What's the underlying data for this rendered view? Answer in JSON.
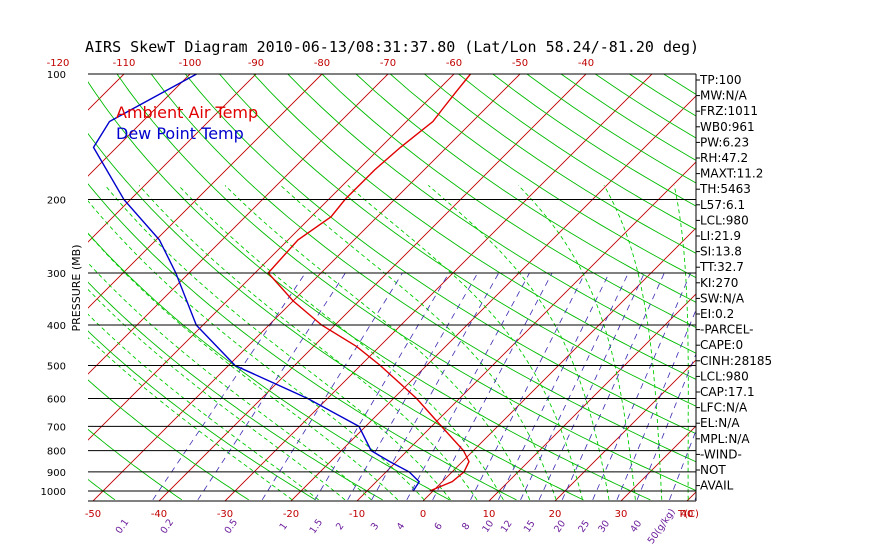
{
  "title": "AIRS SkewT Diagram 2010-06-13/08:31:37.80 (Lat/Lon 58.24/-81.20 deg)",
  "colors": {
    "temp": "#e00000",
    "dew": "#0000cc",
    "isotherm": "#c00000",
    "dry_adiabat": "#00bb00",
    "moist_adiabat": "#00cc00",
    "mixing": "#3a2ab0",
    "isobar": "#000000"
  },
  "chart_data": {
    "type": "line",
    "title": "AIRS SkewT Diagram 2010-06-13/08:31:37.80 (Lat/Lon 58.24/-81.20 deg)",
    "ylabel": "PRESSURE (MB)",
    "xlabel_right": "T(C)",
    "y_scale": "log-pressure",
    "ylim": [
      1050,
      100
    ],
    "pressure_levels": [
      100,
      200,
      300,
      400,
      500,
      600,
      700,
      800,
      900,
      1000
    ],
    "temp_ticks_top": [
      -120,
      -110,
      -100,
      -90,
      -80,
      -70,
      -60,
      -50,
      -40
    ],
    "temp_ticks_bottom": [
      -50,
      -40,
      -30,
      -20,
      -10,
      0,
      10,
      20,
      30,
      40
    ],
    "mixing_ratio_labels": [
      "0.1",
      "0.2",
      "0.5",
      "1",
      "1.5",
      "2",
      "3",
      "4",
      "6",
      "8",
      "10",
      "12",
      "15",
      "20",
      "25",
      "30",
      "40",
      "50(g/kg)"
    ],
    "legend": [
      "Ambient Air Temp",
      "Dew Point Temp"
    ],
    "series": [
      {
        "name": "Ambient Air Temp",
        "color": "#e00000",
        "p": [
          1000,
          950,
          900,
          850,
          800,
          700,
          600,
          500,
          450,
          400,
          350,
          300,
          250,
          220,
          200,
          170,
          150,
          130,
          120,
          110,
          100
        ],
        "t": [
          -0.5,
          1.5,
          1.8,
          1.0,
          -1.5,
          -8.5,
          -16.5,
          -27.0,
          -33.5,
          -42.0,
          -50.0,
          -58.0,
          -58.5,
          -57.0,
          -57.5,
          -57.5,
          -57.0,
          -56.0,
          -56.5,
          -57.0,
          -57.5
        ]
      },
      {
        "name": "Dew Point Temp",
        "color": "#0000cc",
        "p": [
          1000,
          950,
          900,
          850,
          800,
          700,
          600,
          500,
          400,
          300,
          250,
          200,
          150,
          130,
          100
        ],
        "t": [
          -3.0,
          -3.5,
          -6.5,
          -11.0,
          -15.5,
          -21.0,
          -33.0,
          -49.0,
          -61.0,
          -72.0,
          -79.5,
          -91.0,
          -103.5,
          -105.0,
          -99.0
        ]
      }
    ],
    "indices": [
      "TP:100",
      "MW:N/A",
      "FRZ:1011",
      "WB0:961",
      "PW:6.23",
      "RH:47.2",
      "MAXT:11.2",
      "TH:5463",
      "L57:6.1",
      "LCL:980",
      "LI:21.9",
      "SI:13.8",
      "TT:32.7",
      "KI:270",
      "SW:N/A",
      "EI:0.2",
      "-PARCEL-",
      "CAPE:0",
      "CINH:28185",
      "LCL:980",
      "CAP:17.1",
      "LFC:N/A",
      "EL:N/A",
      "MPL:N/A",
      "-WIND-",
      "NOT",
      "AVAIL"
    ]
  }
}
